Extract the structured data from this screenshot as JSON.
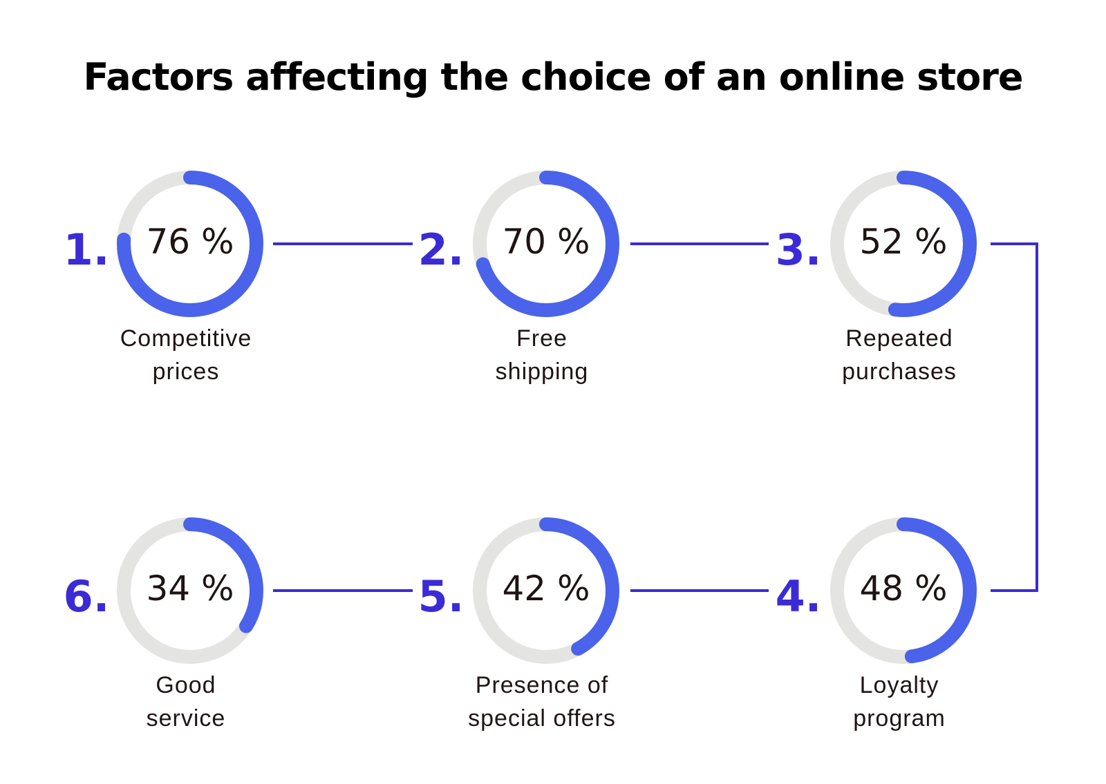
{
  "chart_data": {
    "type": "progress-ring",
    "title": "Factors affecting the choice of an online store",
    "items": [
      {
        "rank": "1.",
        "value": 76,
        "value_label": "76 %",
        "label_lines": [
          "Competitive",
          "prices"
        ]
      },
      {
        "rank": "2.",
        "value": 70,
        "value_label": "70 %",
        "label_lines": [
          "Free",
          "shipping"
        ]
      },
      {
        "rank": "3.",
        "value": 52,
        "value_label": "52 %",
        "label_lines": [
          "Repeated",
          "purchases"
        ]
      },
      {
        "rank": "4.",
        "value": 48,
        "value_label": "48 %",
        "label_lines": [
          "Loyalty",
          "program"
        ]
      },
      {
        "rank": "5.",
        "value": 42,
        "value_label": "42 %",
        "label_lines": [
          "Presence of",
          "special offers"
        ]
      },
      {
        "rank": "6.",
        "value": 34,
        "value_label": "34 %",
        "label_lines": [
          "Good",
          "service"
        ]
      }
    ]
  },
  "colors": {
    "ring_fill": "#4a63ea",
    "ring_track": "#e4e4e2",
    "rank_number": "#3a2bd6",
    "connector": "#3a2bd6",
    "title": "#000000",
    "text": "#1f1414"
  }
}
